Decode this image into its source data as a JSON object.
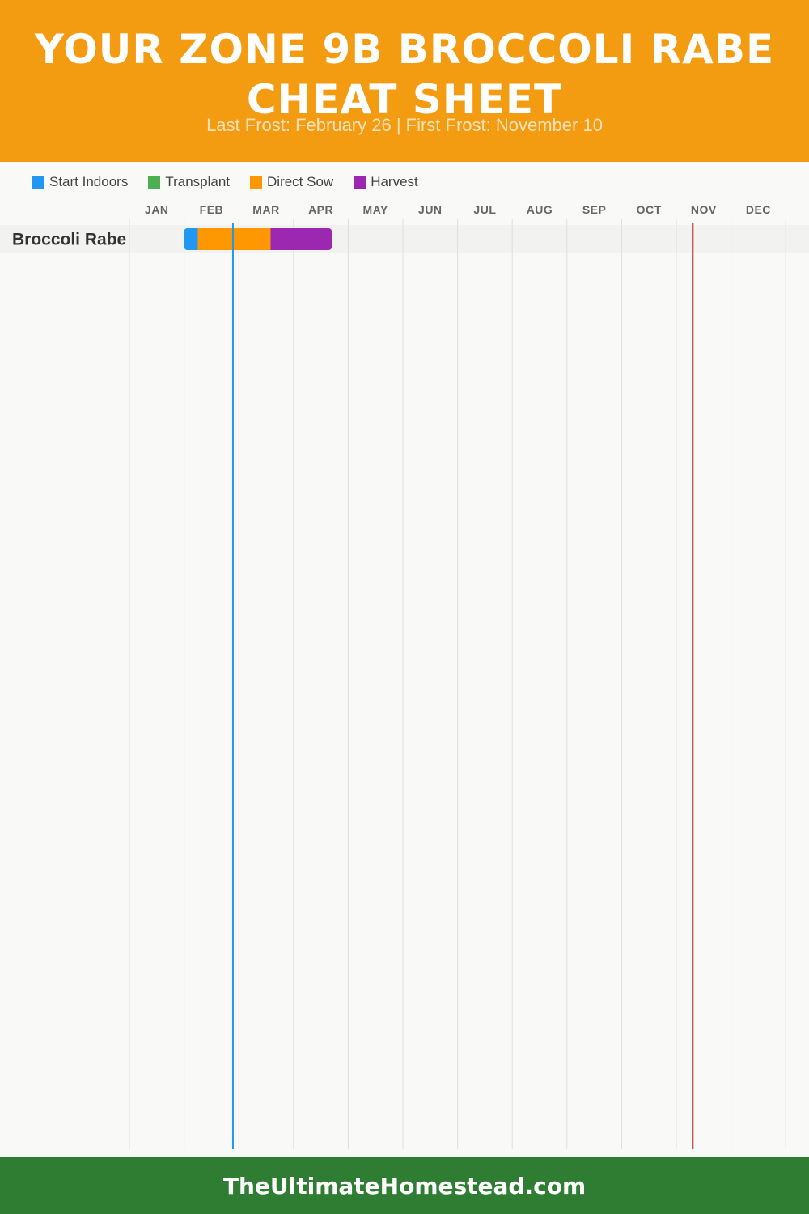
{
  "header": {
    "title": "YOUR ZONE 9B BROCCOLI RABE CHEAT SHEET",
    "subtitle": "Last Frost: February 26 | First Frost: November 10"
  },
  "legend": [
    {
      "label": "Start Indoors",
      "color": "#2196f3"
    },
    {
      "label": "Transplant",
      "color": "#4caf50"
    },
    {
      "label": "Direct Sow",
      "color": "#ff9800"
    },
    {
      "label": "Harvest",
      "color": "#9c27b0"
    }
  ],
  "chart_data": {
    "type": "gantt",
    "months": [
      "JAN",
      "FEB",
      "MAR",
      "APR",
      "MAY",
      "JUN",
      "JUL",
      "AUG",
      "SEP",
      "OCT",
      "NOV",
      "DEC"
    ],
    "crops": [
      {
        "name": "Broccoli Rabe",
        "phases": [
          {
            "phase": "Start Indoors",
            "start": "02-01",
            "end": "02-08"
          },
          {
            "phase": "Direct Sow",
            "start": "02-08",
            "end": "03-19"
          },
          {
            "phase": "Harvest",
            "start": "03-19",
            "end": "04-22"
          }
        ]
      }
    ],
    "last_frost": "02-26",
    "first_frost": "11-10",
    "last_frost_color": "#2196f3",
    "first_frost_color": "#b71c1c",
    "grid": true
  },
  "footer": {
    "site": "TheUltimateHomestead.com"
  }
}
